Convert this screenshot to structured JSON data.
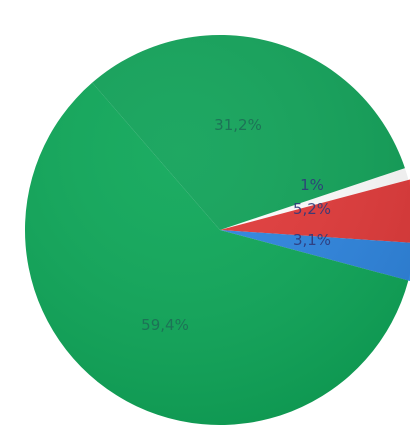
{
  "chart_data": {
    "type": "pie",
    "slices": [
      {
        "label": "31,2%",
        "value": 31.2,
        "color": "#13a35a"
      },
      {
        "label": "1%",
        "value": 1,
        "color": "#ffffff"
      },
      {
        "label": "5,2%",
        "value": 5.2,
        "color": "#e23b3b"
      },
      {
        "label": "3,1%",
        "value": 3.1,
        "color": "#2f86e0"
      },
      {
        "label": "59,4%",
        "value": 59.4,
        "color": "#10a85a"
      }
    ],
    "title": "",
    "legend": "none"
  }
}
